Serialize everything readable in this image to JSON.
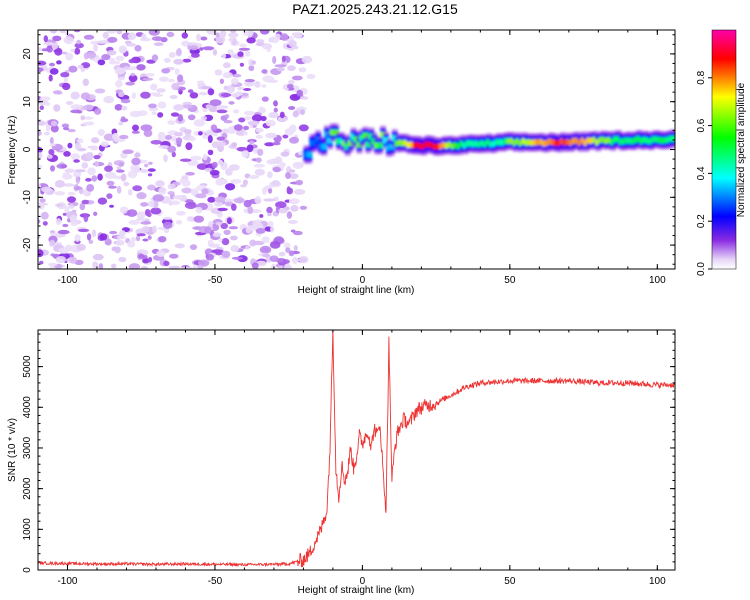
{
  "title": "PAZ1.2025.243.21.12.G15",
  "colors": {
    "snr_line": "#ee3333",
    "frame": "#000000",
    "background": "#ffffff"
  },
  "chart_data": [
    {
      "type": "heatmap",
      "xlabel": "Height of straight line (km)",
      "ylabel": "Frequency (Hz)",
      "xlim": [
        -110,
        106
      ],
      "ylim": [
        -25,
        25
      ],
      "x_ticks": [
        -100,
        -50,
        0,
        50,
        100
      ],
      "y_ticks": [
        -20,
        -10,
        0,
        10,
        20
      ],
      "colorbar": {
        "label": "Normalized spectral amplitude",
        "range": [
          0,
          1
        ],
        "ticks": [
          "0.0",
          "0.2",
          "0.4",
          "0.6",
          "0.8"
        ],
        "colormap": "rainbow (violet→blue→cyan→green→yellow→red→magenta)"
      },
      "regions": [
        {
          "x_range": [
            -110,
            -20
          ],
          "y_range": [
            -25,
            25
          ],
          "amplitude_range": [
            0.0,
            0.1
          ],
          "pattern": "diffuse noise"
        },
        {
          "x_range": [
            -20,
            106
          ],
          "frequency_center": 1.5,
          "amplitude_range": [
            0.2,
            0.9
          ],
          "pattern": "narrow band near 0–3 Hz, strongest at 15–35 km and 55–80 km"
        }
      ],
      "band_center_points": [
        {
          "x": -18,
          "y": 0
        },
        {
          "x": -15,
          "y": 1
        },
        {
          "x": -10,
          "y": 2.5
        },
        {
          "x": -5,
          "y": 1.5
        },
        {
          "x": 0,
          "y": 1.5
        },
        {
          "x": 5,
          "y": 2
        },
        {
          "x": 10,
          "y": 1.5
        },
        {
          "x": 20,
          "y": 0.8
        },
        {
          "x": 30,
          "y": 0.8
        },
        {
          "x": 50,
          "y": 1.5
        },
        {
          "x": 70,
          "y": 1.5
        },
        {
          "x": 90,
          "y": 2
        },
        {
          "x": 106,
          "y": 2
        }
      ],
      "grid": false
    },
    {
      "type": "line",
      "xlabel": "Height of straight line (km)",
      "ylabel": "SNR (10 * v/v)",
      "xlim": [
        -110,
        106
      ],
      "ylim": [
        0,
        5900
      ],
      "x_ticks": [
        -100,
        -50,
        0,
        50,
        100
      ],
      "y_ticks": [
        0,
        1000,
        2000,
        3000,
        4000,
        5000
      ],
      "grid": false,
      "series": [
        {
          "color": "#ee3333",
          "x": [
            -110,
            -100,
            -90,
            -80,
            -70,
            -60,
            -50,
            -40,
            -30,
            -25,
            -20,
            -18,
            -16,
            -14,
            -12,
            -11,
            -10,
            -9,
            -8,
            -7,
            -6,
            -5,
            -4,
            -3,
            -2,
            -1,
            0,
            1,
            2,
            3,
            4,
            5,
            6,
            7,
            8,
            9,
            10,
            11,
            12,
            14,
            16,
            18,
            20,
            25,
            30,
            35,
            40,
            50,
            60,
            70,
            80,
            90,
            100,
            106
          ],
          "y": [
            170,
            160,
            150,
            150,
            140,
            150,
            140,
            130,
            140,
            150,
            250,
            400,
            700,
            1000,
            1500,
            3000,
            5900,
            2500,
            1800,
            2600,
            2200,
            2400,
            3000,
            2500,
            2800,
            3300,
            3100,
            3300,
            3400,
            3000,
            3500,
            3300,
            3600,
            2400,
            1500,
            5600,
            2200,
            3000,
            3400,
            3700,
            3600,
            3900,
            4000,
            4100,
            4300,
            4500,
            4600,
            4650,
            4650,
            4650,
            4600,
            4600,
            4550,
            4550
          ]
        }
      ]
    }
  ]
}
